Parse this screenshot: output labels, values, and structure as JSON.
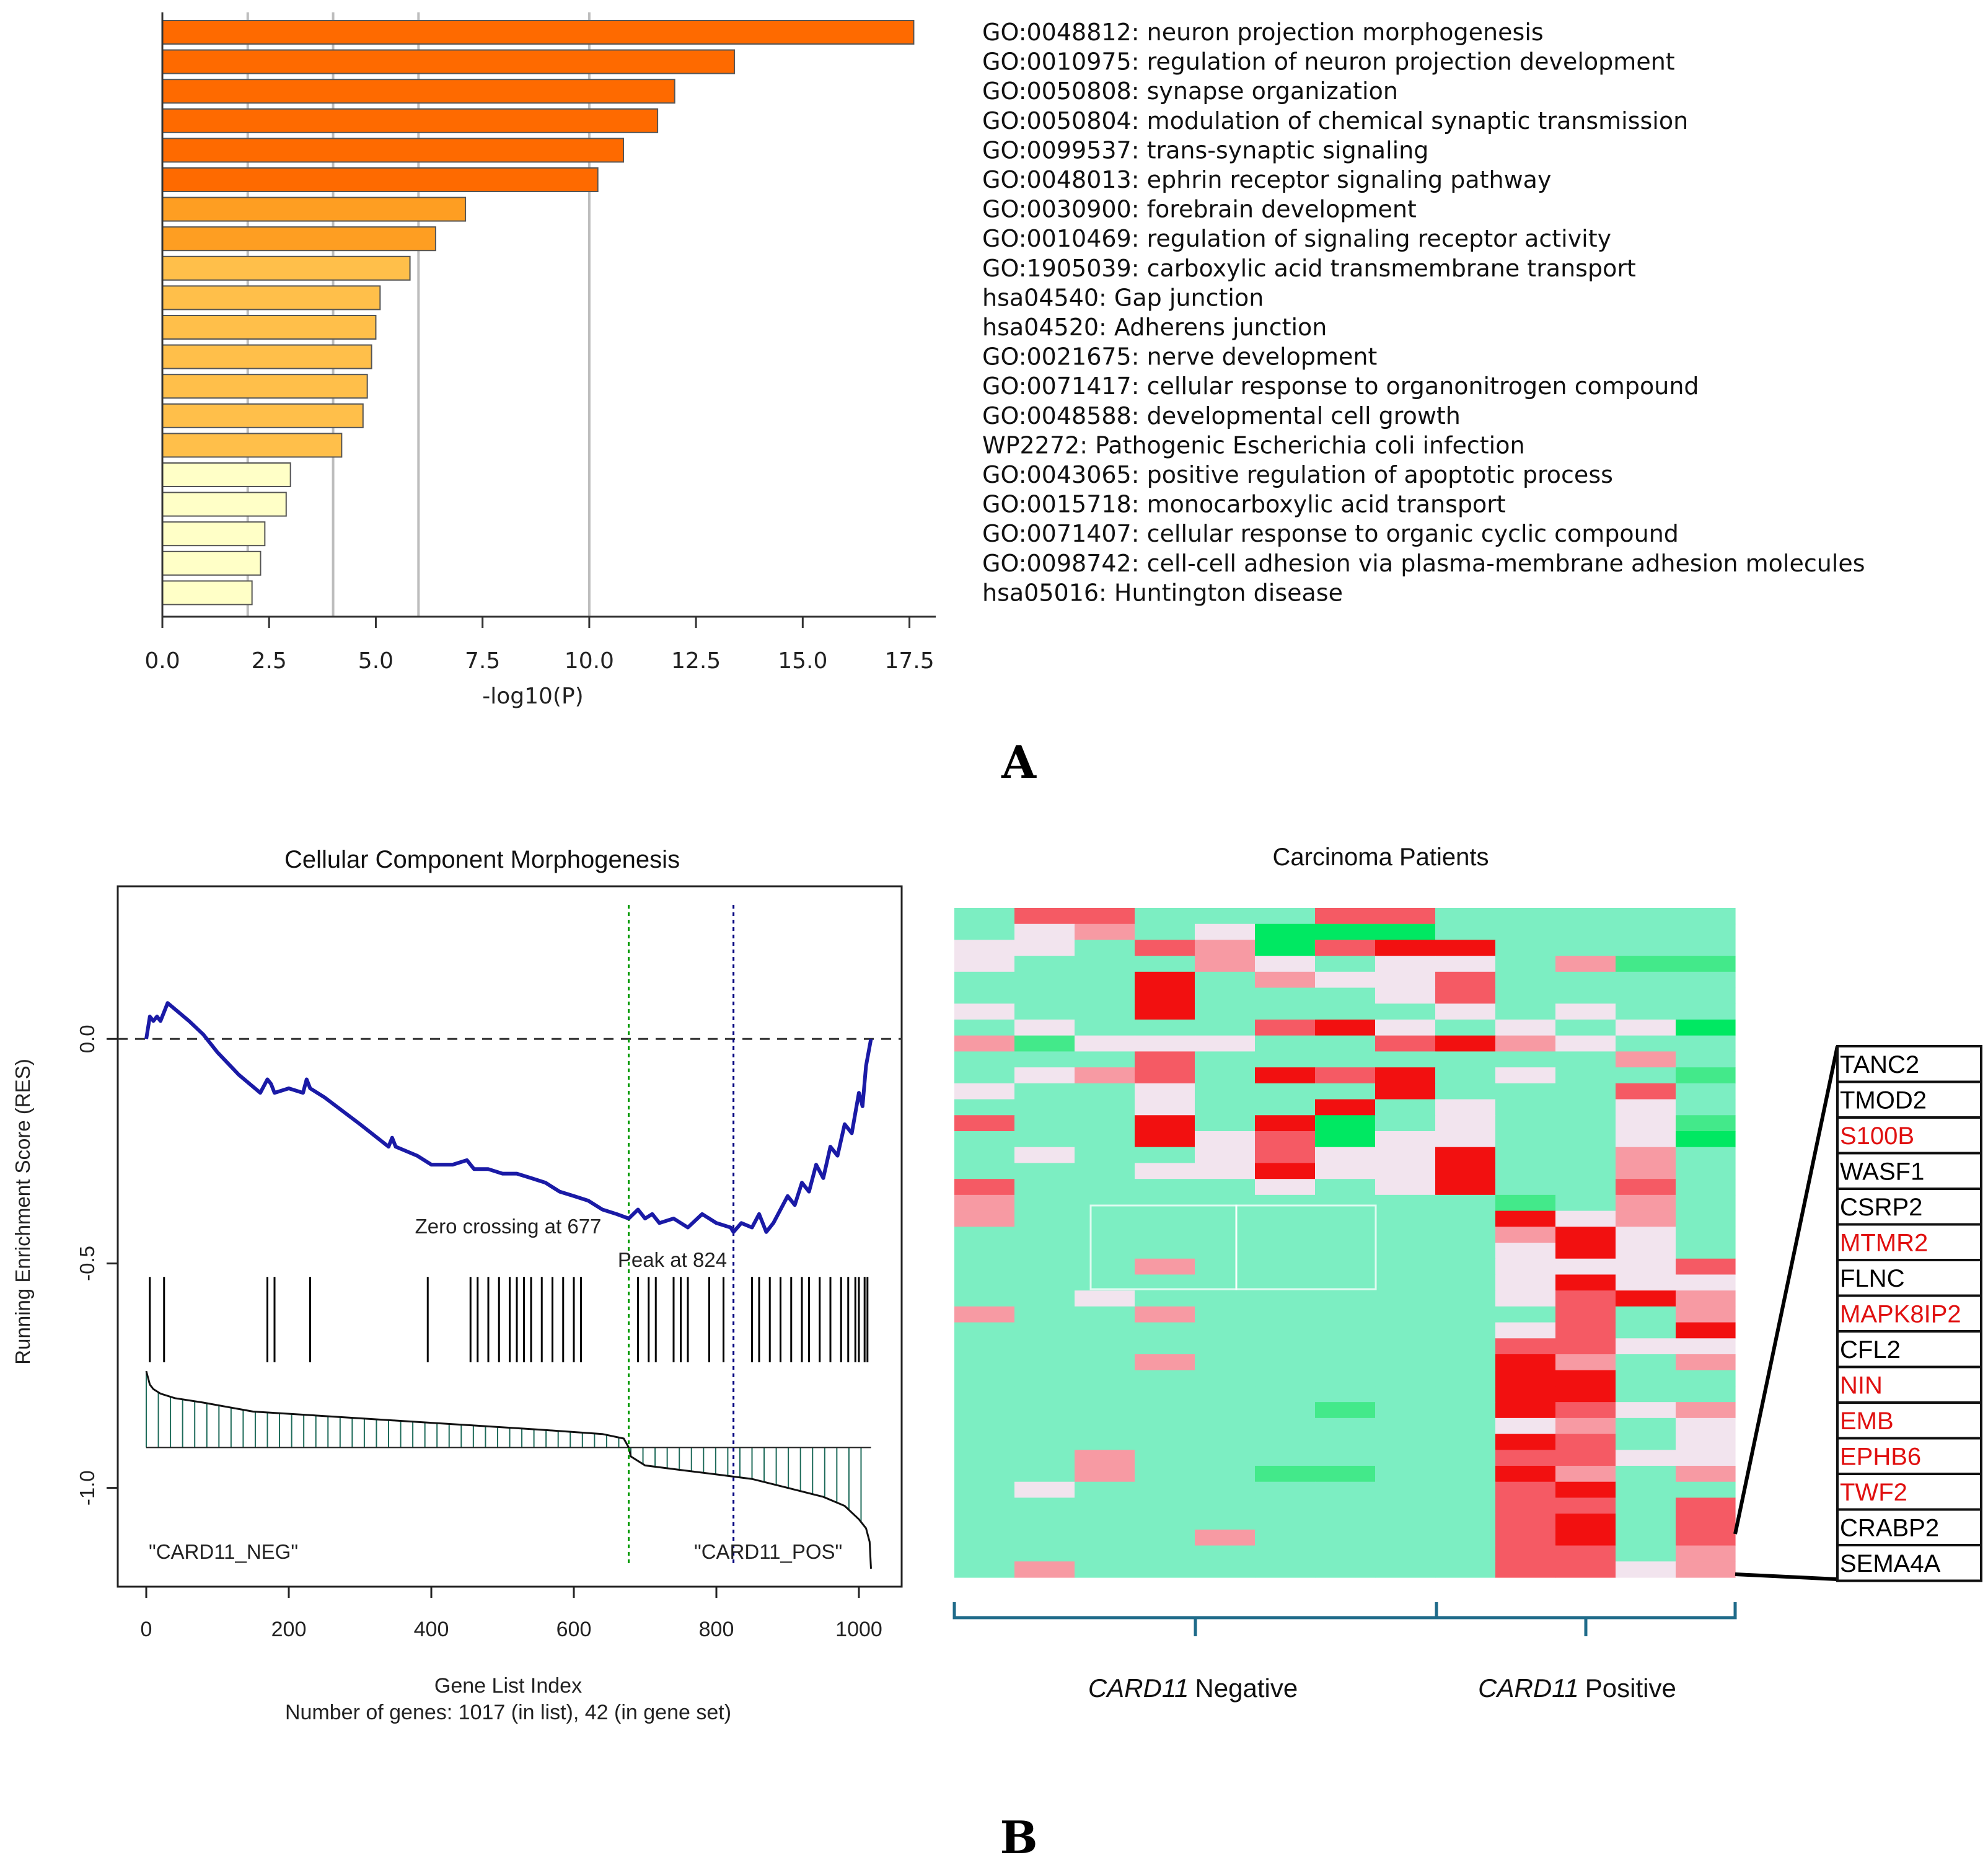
{
  "panels": {
    "a_label": "A",
    "b_label": "B"
  },
  "chart_data": [
    {
      "type": "bar",
      "orientation": "horizontal",
      "xlabel": "-log10(P)",
      "xlim": [
        0,
        18.5
      ],
      "xticks": [
        "0.0",
        "2.5",
        "5.0",
        "7.5",
        "10.0",
        "12.5",
        "15.0",
        "17.5"
      ],
      "reference_lines": [
        2,
        4,
        6,
        10
      ],
      "categories": [
        "GO:0048812: neuron projection morphogenesis",
        "GO:0010975: regulation of neuron projection development",
        "GO:0050808: synapse organization",
        "GO:0050804: modulation of chemical synaptic transmission",
        "GO:0099537: trans-synaptic signaling",
        "GO:0048013: ephrin receptor signaling pathway",
        "GO:0030900: forebrain development",
        "GO:0010469: regulation of signaling receptor activity",
        "GO:1905039: carboxylic acid transmembrane transport",
        "hsa04540: Gap junction",
        "hsa04520: Adherens junction",
        "GO:0021675: nerve development",
        "GO:0071417: cellular response to organonitrogen compound",
        "GO:0048588: developmental cell growth",
        "WP2272: Pathogenic Escherichia coli infection",
        "GO:0043065: positive regulation of apoptotic process",
        "GO:0015718: monocarboxylic acid transport",
        "GO:0071407: cellular response to organic cyclic compound",
        "GO:0098742: cell-cell adhesion via plasma-membrane adhesion molecules",
        "hsa05016: Huntington disease"
      ],
      "values": [
        17.6,
        13.4,
        12.0,
        11.6,
        10.8,
        10.2,
        7.1,
        6.4,
        5.8,
        5.1,
        5.0,
        4.9,
        4.8,
        4.7,
        4.2,
        3.0,
        2.9,
        2.4,
        2.3,
        2.1
      ],
      "colors": {
        "darkorange": "#fe6a00",
        "orange": "#fe9e22",
        "lightorange": "#ffbf4a",
        "pale": "#ffffc7",
        "edge": "#555555"
      }
    },
    {
      "type": "line",
      "title": "Cellular Component Morphogenesis",
      "ylabel": "Running Enrichment Score (RES)",
      "xlabel": "Gene List Index",
      "footnote": "Number of genes: 1017 (in list), 42 (in gene set)",
      "xlim": [
        -40,
        1060
      ],
      "ylim": [
        -1.22,
        0.34
      ],
      "xticks": [
        0,
        200,
        400,
        600,
        800,
        1000
      ],
      "xtick_labels": [
        "0",
        "200",
        "400",
        "600",
        "800",
        "1000"
      ],
      "yticks": [
        0.0,
        -0.5,
        -1.0
      ],
      "ytick_labels": [
        "0.0",
        "-0.5",
        "-1.0"
      ],
      "annotations": {
        "zero_crossing": "Zero crossing at 677",
        "peak": "Peak at 824",
        "neg_label": "\"CARD11_NEG\"",
        "pos_label": "\"CARD11_POS\""
      },
      "zero_crossing_x": 677,
      "peak_x": 824,
      "es_curve": {
        "x": [
          0,
          5,
          10,
          15,
          20,
          25,
          30,
          45,
          60,
          80,
          100,
          130,
          160,
          170,
          175,
          180,
          200,
          220,
          225,
          230,
          250,
          300,
          340,
          345,
          350,
          380,
          400,
          430,
          450,
          460,
          480,
          500,
          520,
          540,
          560,
          580,
          600,
          620,
          640,
          660,
          677,
          690,
          700,
          710,
          720,
          740,
          760,
          780,
          800,
          820,
          824,
          835,
          850,
          860,
          870,
          880,
          900,
          910,
          920,
          930,
          940,
          950,
          960,
          970,
          980,
          990,
          1000,
          1005,
          1010,
          1017
        ],
        "y": [
          0.0,
          0.05,
          0.04,
          0.05,
          0.04,
          0.06,
          0.08,
          0.06,
          0.04,
          0.01,
          -0.03,
          -0.08,
          -0.12,
          -0.09,
          -0.1,
          -0.12,
          -0.11,
          -0.12,
          -0.09,
          -0.11,
          -0.13,
          -0.19,
          -0.24,
          -0.22,
          -0.24,
          -0.26,
          -0.28,
          -0.28,
          -0.27,
          -0.29,
          -0.29,
          -0.3,
          -0.3,
          -0.31,
          -0.32,
          -0.34,
          -0.35,
          -0.36,
          -0.38,
          -0.39,
          -0.4,
          -0.38,
          -0.4,
          -0.39,
          -0.41,
          -0.4,
          -0.42,
          -0.39,
          -0.41,
          -0.42,
          -0.43,
          -0.41,
          -0.42,
          -0.39,
          -0.43,
          -0.41,
          -0.35,
          -0.37,
          -0.32,
          -0.34,
          -0.28,
          -0.31,
          -0.24,
          -0.26,
          -0.19,
          -0.21,
          -0.12,
          -0.15,
          -0.06,
          0.0
        ]
      },
      "hit_positions": [
        5,
        25,
        170,
        180,
        230,
        395,
        455,
        465,
        480,
        495,
        510,
        520,
        530,
        540,
        555,
        570,
        585,
        600,
        610,
        690,
        705,
        715,
        740,
        750,
        760,
        790,
        810,
        850,
        860,
        875,
        890,
        905,
        920,
        930,
        945,
        960,
        975,
        985,
        995,
        1000,
        1008,
        1012
      ],
      "hit_band_y": [
        -0.53,
        -0.72
      ],
      "ranked_metric_baseline_y": -0.91,
      "ranked_metric": {
        "x": [
          0,
          5,
          10,
          20,
          40,
          80,
          150,
          250,
          350,
          450,
          550,
          640,
          670,
          677,
          680,
          700,
          750,
          800,
          850,
          900,
          950,
          980,
          1000,
          1010,
          1015,
          1017
        ],
        "y": [
          -0.74,
          -0.77,
          -0.78,
          -0.79,
          -0.8,
          -0.81,
          -0.83,
          -0.84,
          -0.85,
          -0.86,
          -0.87,
          -0.88,
          -0.89,
          -0.91,
          -0.93,
          -0.95,
          -0.96,
          -0.97,
          -0.98,
          -1.0,
          -1.02,
          -1.04,
          -1.07,
          -1.09,
          -1.12,
          -1.18
        ]
      },
      "colors": {
        "curve": "#1a1aa6",
        "zero_line": "#009900",
        "peak_line": "#000080",
        "hits": "#000000",
        "metric": "#1e6b5a"
      }
    },
    {
      "type": "heatmap",
      "title": "Carcinoma Patients",
      "group_labels": [
        {
          "italic": "CARD11",
          "rest": "Negative"
        },
        {
          "italic": "CARD11",
          "rest": "Positive"
        }
      ],
      "gene_labels": [
        {
          "name": "TANC2",
          "color": "#000000"
        },
        {
          "name": "TMOD2",
          "color": "#000000"
        },
        {
          "name": "S100B",
          "color": "#e01010"
        },
        {
          "name": "WASF1",
          "color": "#000000"
        },
        {
          "name": "CSRP2",
          "color": "#000000"
        },
        {
          "name": "MTMR2",
          "color": "#e01010"
        },
        {
          "name": "FLNC",
          "color": "#000000"
        },
        {
          "name": "MAPK8IP2",
          "color": "#e01010"
        },
        {
          "name": "CFL2",
          "color": "#000000"
        },
        {
          "name": "NIN",
          "color": "#e01010"
        },
        {
          "name": "EMB",
          "color": "#e01010"
        },
        {
          "name": "EPHB6",
          "color": "#e01010"
        },
        {
          "name": "TWF2",
          "color": "#e01010"
        },
        {
          "name": "CRABP2",
          "color": "#000000"
        },
        {
          "name": "SEMA4A",
          "color": "#000000"
        }
      ],
      "palette": [
        "#00e862",
        "#43e98a",
        "#7ceec2",
        "#f2e4ee",
        "#f79aa3",
        "#f55a64",
        "#f21010"
      ],
      "n_neg_columns": 8,
      "n_pos_columns": 5,
      "matrix": [
        [
          2,
          5,
          5,
          2,
          2,
          2,
          5,
          5,
          2,
          2,
          2,
          2,
          2
        ],
        [
          2,
          3,
          4,
          2,
          3,
          0,
          0,
          0,
          2,
          2,
          2,
          2,
          2
        ],
        [
          3,
          3,
          2,
          5,
          4,
          0,
          5,
          6,
          6,
          2,
          2,
          2,
          2
        ],
        [
          3,
          2,
          2,
          2,
          4,
          3,
          2,
          3,
          3,
          2,
          4,
          1,
          1
        ],
        [
          2,
          2,
          2,
          6,
          2,
          4,
          3,
          3,
          5,
          2,
          2,
          2,
          2
        ],
        [
          2,
          2,
          2,
          6,
          2,
          2,
          2,
          3,
          5,
          2,
          2,
          2,
          2
        ],
        [
          3,
          2,
          2,
          6,
          2,
          2,
          2,
          2,
          3,
          2,
          3,
          2,
          2
        ],
        [
          2,
          3,
          2,
          2,
          2,
          5,
          6,
          3,
          2,
          3,
          2,
          3,
          0
        ],
        [
          4,
          1,
          3,
          3,
          3,
          2,
          2,
          5,
          6,
          4,
          3,
          2,
          2
        ],
        [
          2,
          2,
          2,
          5,
          2,
          2,
          2,
          2,
          2,
          2,
          2,
          4,
          2
        ],
        [
          2,
          3,
          4,
          5,
          2,
          6,
          5,
          6,
          2,
          3,
          2,
          2,
          1
        ],
        [
          3,
          2,
          2,
          3,
          2,
          2,
          2,
          6,
          2,
          2,
          2,
          5,
          2
        ],
        [
          2,
          2,
          2,
          3,
          2,
          2,
          6,
          2,
          3,
          2,
          2,
          3,
          2
        ],
        [
          5,
          2,
          2,
          6,
          2,
          6,
          0,
          2,
          3,
          2,
          2,
          3,
          1
        ],
        [
          2,
          2,
          2,
          6,
          3,
          5,
          0,
          3,
          3,
          2,
          2,
          3,
          0
        ],
        [
          2,
          3,
          2,
          2,
          3,
          5,
          3,
          3,
          6,
          2,
          2,
          4,
          2
        ],
        [
          2,
          2,
          2,
          3,
          3,
          6,
          3,
          3,
          6,
          2,
          2,
          4,
          2
        ],
        [
          5,
          2,
          2,
          2,
          2,
          3,
          2,
          3,
          6,
          2,
          2,
          5,
          2
        ],
        [
          4,
          2,
          2,
          2,
          2,
          2,
          2,
          2,
          2,
          1,
          2,
          4,
          2
        ],
        [
          4,
          2,
          2,
          2,
          2,
          2,
          2,
          2,
          2,
          6,
          3,
          4,
          2
        ],
        [
          2,
          2,
          2,
          2,
          2,
          2,
          2,
          2,
          2,
          4,
          6,
          3,
          2
        ],
        [
          2,
          2,
          2,
          2,
          2,
          2,
          2,
          2,
          2,
          3,
          6,
          3,
          2
        ],
        [
          2,
          2,
          2,
          4,
          2,
          2,
          2,
          2,
          2,
          3,
          3,
          3,
          5
        ],
        [
          2,
          2,
          2,
          2,
          2,
          2,
          2,
          2,
          2,
          3,
          6,
          3,
          3
        ],
        [
          2,
          2,
          3,
          2,
          2,
          2,
          2,
          2,
          2,
          3,
          5,
          6,
          4
        ],
        [
          4,
          2,
          2,
          4,
          2,
          2,
          2,
          2,
          2,
          2,
          5,
          2,
          4
        ],
        [
          2,
          2,
          2,
          2,
          2,
          2,
          2,
          2,
          2,
          3,
          5,
          2,
          6
        ],
        [
          2,
          2,
          2,
          2,
          2,
          2,
          2,
          2,
          2,
          5,
          5,
          3,
          3
        ],
        [
          2,
          2,
          2,
          4,
          2,
          2,
          2,
          2,
          2,
          6,
          4,
          2,
          4
        ],
        [
          2,
          2,
          2,
          2,
          2,
          2,
          2,
          2,
          2,
          6,
          6,
          2,
          2
        ],
        [
          2,
          2,
          2,
          2,
          2,
          2,
          2,
          2,
          2,
          6,
          6,
          2,
          2
        ],
        [
          2,
          2,
          2,
          2,
          2,
          2,
          1,
          2,
          2,
          6,
          5,
          3,
          4
        ],
        [
          2,
          2,
          2,
          2,
          2,
          2,
          2,
          2,
          2,
          3,
          4,
          2,
          3
        ],
        [
          2,
          2,
          2,
          2,
          2,
          2,
          2,
          2,
          2,
          6,
          5,
          2,
          3
        ],
        [
          2,
          2,
          4,
          2,
          2,
          2,
          2,
          2,
          2,
          5,
          5,
          3,
          3
        ],
        [
          2,
          2,
          4,
          2,
          2,
          1,
          1,
          2,
          2,
          6,
          4,
          2,
          4
        ],
        [
          2,
          3,
          2,
          2,
          2,
          2,
          2,
          2,
          2,
          5,
          6,
          2,
          2
        ],
        [
          2,
          2,
          2,
          2,
          2,
          2,
          2,
          2,
          2,
          5,
          5,
          2,
          5
        ],
        [
          2,
          2,
          2,
          2,
          2,
          2,
          2,
          2,
          2,
          5,
          6,
          2,
          5
        ],
        [
          2,
          2,
          2,
          2,
          4,
          2,
          2,
          2,
          2,
          5,
          6,
          2,
          5
        ],
        [
          2,
          2,
          2,
          2,
          2,
          2,
          2,
          2,
          2,
          5,
          5,
          2,
          4
        ],
        [
          2,
          4,
          2,
          2,
          2,
          2,
          2,
          2,
          2,
          5,
          5,
          3,
          4
        ]
      ]
    }
  ]
}
